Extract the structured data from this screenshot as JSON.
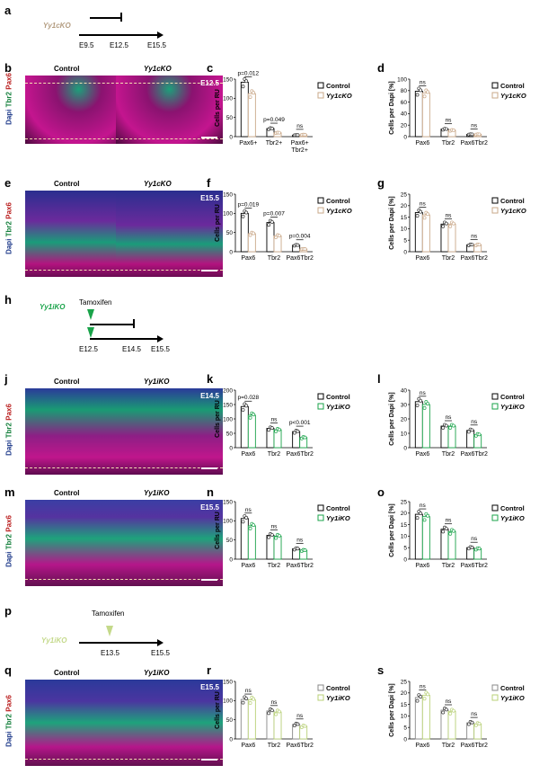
{
  "figure": {
    "panel_letters": [
      "a",
      "b",
      "c",
      "d",
      "e",
      "f",
      "g",
      "h",
      "j",
      "k",
      "l",
      "m",
      "n",
      "o",
      "p",
      "q",
      "r",
      "s"
    ],
    "timelines": {
      "a": {
        "label": "Yy1cKO",
        "label_color": "#b39c80",
        "ticks": [
          "E9.5",
          "E12.5",
          "E15.5"
        ]
      },
      "h": {
        "label": "Yy1iKO",
        "label_color": "#1aa34a",
        "tamoxifen": "Tamoxifen",
        "ticks": [
          "E12.5",
          "E14.5",
          "E15.5"
        ]
      },
      "p": {
        "label": "Yy1iKO",
        "label_color": "#c4d98a",
        "tamoxifen": "Tamoxifen",
        "ticks": [
          "E13.5",
          "E15.5"
        ]
      }
    },
    "micrographs": {
      "b": {
        "left": "Control",
        "right": "Yy1cKO",
        "age": "E12.5",
        "stain": [
          "Dapi",
          "Tbr2",
          "Pax6"
        ]
      },
      "e": {
        "left": "Control",
        "right": "Yy1cKO",
        "age": "E15.5",
        "stain": [
          "Dapi",
          "Tbr2",
          "Pax6"
        ]
      },
      "j": {
        "left": "Control",
        "right": "Yy1iKO",
        "age": "E14.5",
        "stain": [
          "Dapi",
          "Tbr2",
          "Pax6"
        ]
      },
      "m": {
        "left": "Control",
        "right": "Yy1iKO",
        "age": "E15.5",
        "stain": [
          "Dapi",
          "Tbr2",
          "Pax6"
        ]
      },
      "q": {
        "left": "Control",
        "right": "Yy1iKO",
        "age": "E15.5",
        "stain": [
          "Dapi",
          "Tbr2",
          "Pax6"
        ]
      }
    }
  },
  "chart_data": [
    {
      "id": "c",
      "type": "bar",
      "ylabel": "Cells per RU",
      "ylim": [
        0,
        150
      ],
      "yticks": [
        0,
        50,
        100,
        150
      ],
      "categories": [
        "Pax6+",
        "Tbr2+",
        "Pax6+ Tbr2+"
      ],
      "series": [
        {
          "name": "Control",
          "color": "#000000",
          "fill": "#ffffff",
          "values": [
            142,
            21,
            4
          ]
        },
        {
          "name": "Yy1cKO",
          "color": "#caa98a",
          "fill": "#ffffff",
          "values": [
            112,
            10,
            5
          ]
        }
      ],
      "annotations": [
        "p=0.012",
        "p=0.049",
        "ns"
      ]
    },
    {
      "id": "d",
      "type": "bar",
      "ylabel": "Cells per Dapi [%]",
      "ylim": [
        0,
        100
      ],
      "yticks": [
        0,
        20,
        40,
        60,
        80,
        100
      ],
      "categories": [
        "Pax6",
        "Tbr2",
        "Pax6Tbr2"
      ],
      "series": [
        {
          "name": "Control",
          "color": "#000000",
          "fill": "#ffffff",
          "values": [
            79,
            13,
            4
          ]
        },
        {
          "name": "Yy1cKO",
          "color": "#caa98a",
          "fill": "#ffffff",
          "values": [
            76,
            11,
            4
          ]
        }
      ],
      "annotations": [
        "ns",
        "ns",
        "ns"
      ]
    },
    {
      "id": "f",
      "type": "bar",
      "ylabel": "Cells per RU",
      "ylim": [
        0,
        150
      ],
      "yticks": [
        0,
        50,
        100,
        150
      ],
      "categories": [
        "Pax6",
        "Tbr2",
        "Pax6Tbr2"
      ],
      "series": [
        {
          "name": "Control",
          "color": "#000000",
          "fill": "#ffffff",
          "values": [
            100,
            76,
            17
          ]
        },
        {
          "name": "Yy1cKO",
          "color": "#caa98a",
          "fill": "#ffffff",
          "values": [
            47,
            41,
            7
          ]
        }
      ],
      "annotations": [
        "p=0.019",
        "p=0.007",
        "p=0.004"
      ]
    },
    {
      "id": "g",
      "type": "bar",
      "ylabel": "Cells per Dapi [%]",
      "ylim": [
        0,
        25
      ],
      "yticks": [
        0,
        5,
        10,
        15,
        20,
        25
      ],
      "categories": [
        "Pax6",
        "Tbr2",
        "Pax6Tbr2"
      ],
      "series": [
        {
          "name": "Control",
          "color": "#000000",
          "fill": "#ffffff",
          "values": [
            17,
            12,
            3
          ]
        },
        {
          "name": "Yy1cKO",
          "color": "#caa98a",
          "fill": "#ffffff",
          "values": [
            16,
            12,
            3
          ]
        }
      ],
      "annotations": [
        "ns",
        "ns",
        "ns"
      ]
    },
    {
      "id": "k",
      "type": "bar",
      "ylabel": "Cells per RU",
      "ylim": [
        0,
        200
      ],
      "yticks": [
        0,
        50,
        100,
        150,
        200
      ],
      "categories": [
        "Pax6",
        "Tbr2",
        "Pax6Tbr2"
      ],
      "series": [
        {
          "name": "Control",
          "color": "#000000",
          "fill": "#ffffff",
          "values": [
            143,
            67,
            56
          ]
        },
        {
          "name": "Yy1iKO",
          "color": "#1aa34a",
          "fill": "#ffffff",
          "values": [
            113,
            62,
            35
          ]
        }
      ],
      "annotations": [
        "p=0.028",
        "ns",
        "p<0.001"
      ]
    },
    {
      "id": "l",
      "type": "bar",
      "ylabel": "Cells per Dapi [%]",
      "ylim": [
        0,
        40
      ],
      "yticks": [
        0,
        10,
        20,
        30,
        40
      ],
      "categories": [
        "Pax6",
        "Tbr2",
        "Pax6Tbr2"
      ],
      "series": [
        {
          "name": "Control",
          "color": "#000000",
          "fill": "#ffffff",
          "values": [
            32,
            15,
            12
          ]
        },
        {
          "name": "Yy1iKO",
          "color": "#1aa34a",
          "fill": "#ffffff",
          "values": [
            30,
            15,
            9
          ]
        }
      ],
      "annotations": [
        "ns",
        "ns",
        "ns"
      ]
    },
    {
      "id": "n",
      "type": "bar",
      "ylabel": "Cells per RU",
      "ylim": [
        0,
        150
      ],
      "yticks": [
        0,
        50,
        100,
        150
      ],
      "categories": [
        "Pax6",
        "Tbr2",
        "Pax6Tbr2"
      ],
      "series": [
        {
          "name": "Control",
          "color": "#000000",
          "fill": "#ffffff",
          "values": [
            106,
            62,
            27
          ]
        },
        {
          "name": "Yy1iKO",
          "color": "#1aa34a",
          "fill": "#ffffff",
          "values": [
            87,
            60,
            23
          ]
        }
      ],
      "annotations": [
        "ns",
        "ns",
        "ns"
      ]
    },
    {
      "id": "o",
      "type": "bar",
      "ylabel": "Cells per Dapi [%]",
      "ylim": [
        0,
        25
      ],
      "yticks": [
        0,
        5,
        10,
        15,
        20,
        25
      ],
      "categories": [
        "Pax6",
        "Tbr2",
        "Pax6Tbr2"
      ],
      "series": [
        {
          "name": "Control",
          "color": "#000000",
          "fill": "#ffffff",
          "values": [
            19.5,
            13,
            5
          ]
        },
        {
          "name": "Yy1iKO",
          "color": "#1aa34a",
          "fill": "#ffffff",
          "values": [
            18.5,
            12,
            4.5
          ]
        }
      ],
      "annotations": [
        "ns",
        "ns",
        "ns"
      ]
    },
    {
      "id": "r",
      "type": "bar",
      "ylabel": "Cells per RU",
      "ylim": [
        0,
        150
      ],
      "yticks": [
        0,
        50,
        100,
        150
      ],
      "categories": [
        "Pax6",
        "Tbr2",
        "Pax6Tbr2"
      ],
      "series": [
        {
          "name": "Control",
          "color": "#888888",
          "fill": "#ffffff",
          "values": [
            103,
            73,
            38
          ]
        },
        {
          "name": "Yy1iKO",
          "color": "#b8d077",
          "fill": "#ffffff",
          "values": [
            102,
            70,
            33
          ]
        }
      ],
      "annotations": [
        "ns",
        "ns",
        "ns"
      ]
    },
    {
      "id": "s",
      "type": "bar",
      "ylabel": "Cells per Dapi [%]",
      "ylim": [
        0,
        25
      ],
      "yticks": [
        0,
        5,
        10,
        15,
        20,
        25
      ],
      "categories": [
        "Pax6",
        "Tbr2",
        "Pax6Tbr2"
      ],
      "series": [
        {
          "name": "Control",
          "color": "#888888",
          "fill": "#ffffff",
          "values": [
            18,
            12.5,
            7
          ]
        },
        {
          "name": "Yy1iKO",
          "color": "#b8d077",
          "fill": "#ffffff",
          "values": [
            19,
            12,
            6.5
          ]
        }
      ],
      "annotations": [
        "ns",
        "ns",
        "ns"
      ]
    }
  ]
}
